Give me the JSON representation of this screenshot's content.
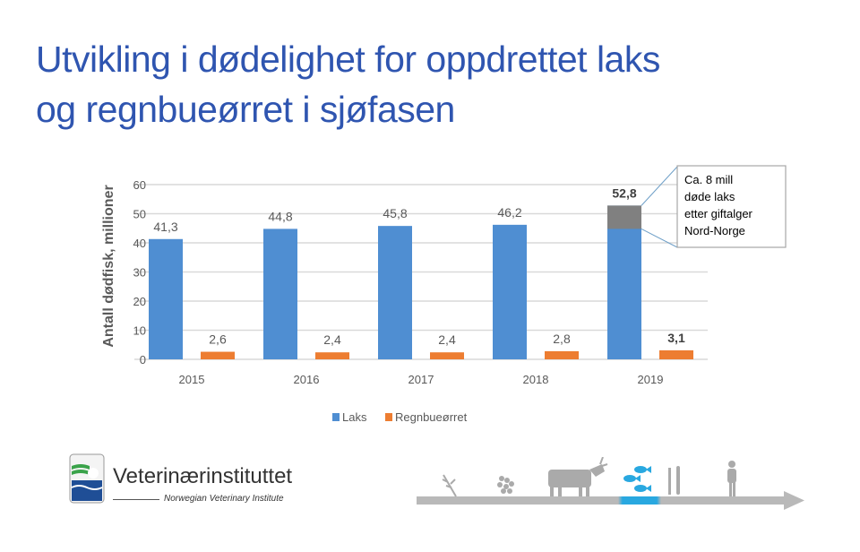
{
  "title": {
    "line1": "Utvikling i dødelighet for oppdrettet laks",
    "line2": "og regnbueørret i sjøfasen"
  },
  "chart_data": {
    "type": "bar",
    "title": "",
    "xlabel": "",
    "ylabel": "Antall dødfisk, millioner",
    "ylim": [
      0,
      60
    ],
    "yticks": [
      "0",
      "10",
      "20",
      "30",
      "40",
      "50",
      "60"
    ],
    "categories": [
      "2015",
      "2016",
      "2017",
      "2018",
      "2019"
    ],
    "series": [
      {
        "name": "Laks",
        "color": "#4f8ed2",
        "values": [
          41.3,
          44.8,
          45.8,
          46.2,
          52.8
        ],
        "labels": [
          "41,3",
          "44,8",
          "45,8",
          "46,2",
          "52,8"
        ]
      },
      {
        "name": "Regnbueørret",
        "color": "#ed7d31",
        "values": [
          2.6,
          2.4,
          2.4,
          2.8,
          3.1
        ],
        "labels": [
          "2,6",
          "2,4",
          "2,4",
          "2,8",
          "3,1"
        ]
      }
    ],
    "highlight": {
      "category": "2019",
      "from": 44.8,
      "to": 52.8,
      "color": "#808080"
    },
    "annotation": [
      "Ca. 8 mill",
      "døde laks",
      "etter giftalger",
      "Nord-Norge"
    ],
    "grid": true,
    "legend": "bottom"
  },
  "logo": {
    "name": "Veterinærinstituttet",
    "subtitle": "Norwegian Veterinary Institute"
  },
  "colors": {
    "title": "#2f55b0",
    "arrow": "#b9b9b9",
    "fish": "#29a8e0"
  }
}
